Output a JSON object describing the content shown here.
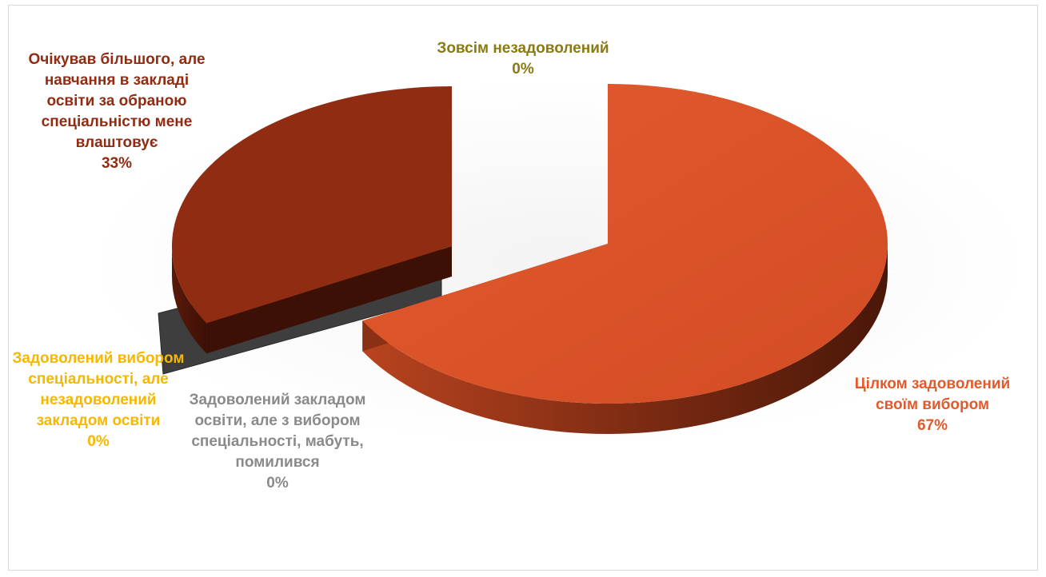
{
  "chart_data": {
    "type": "pie",
    "variant": "3d-exploded",
    "title": "",
    "slices": [
      {
        "label": "Цілком задоволений своїм вибором",
        "value": 67,
        "percent_label": "67%",
        "color": "#d9512a"
      },
      {
        "label": "Зовсім незадоволений",
        "value": 0,
        "percent_label": "0%",
        "color": "#8b7a14"
      },
      {
        "label": "Очікував більшого, але навчання в закладі освіти за обраною спеціальністю мене влаштовує",
        "value": 33,
        "percent_label": "33%",
        "color": "#8f2c12"
      },
      {
        "label": "Задоволений вибором спеціальності, але незадоволений закладом освіти",
        "value": 0,
        "percent_label": "0%",
        "color": "#f5b800"
      },
      {
        "label": "Задоволений закладом освіти, але з вибором спеціальності, мабуть, помилився",
        "value": 0,
        "percent_label": "0%",
        "color": "#808080"
      }
    ]
  }
}
